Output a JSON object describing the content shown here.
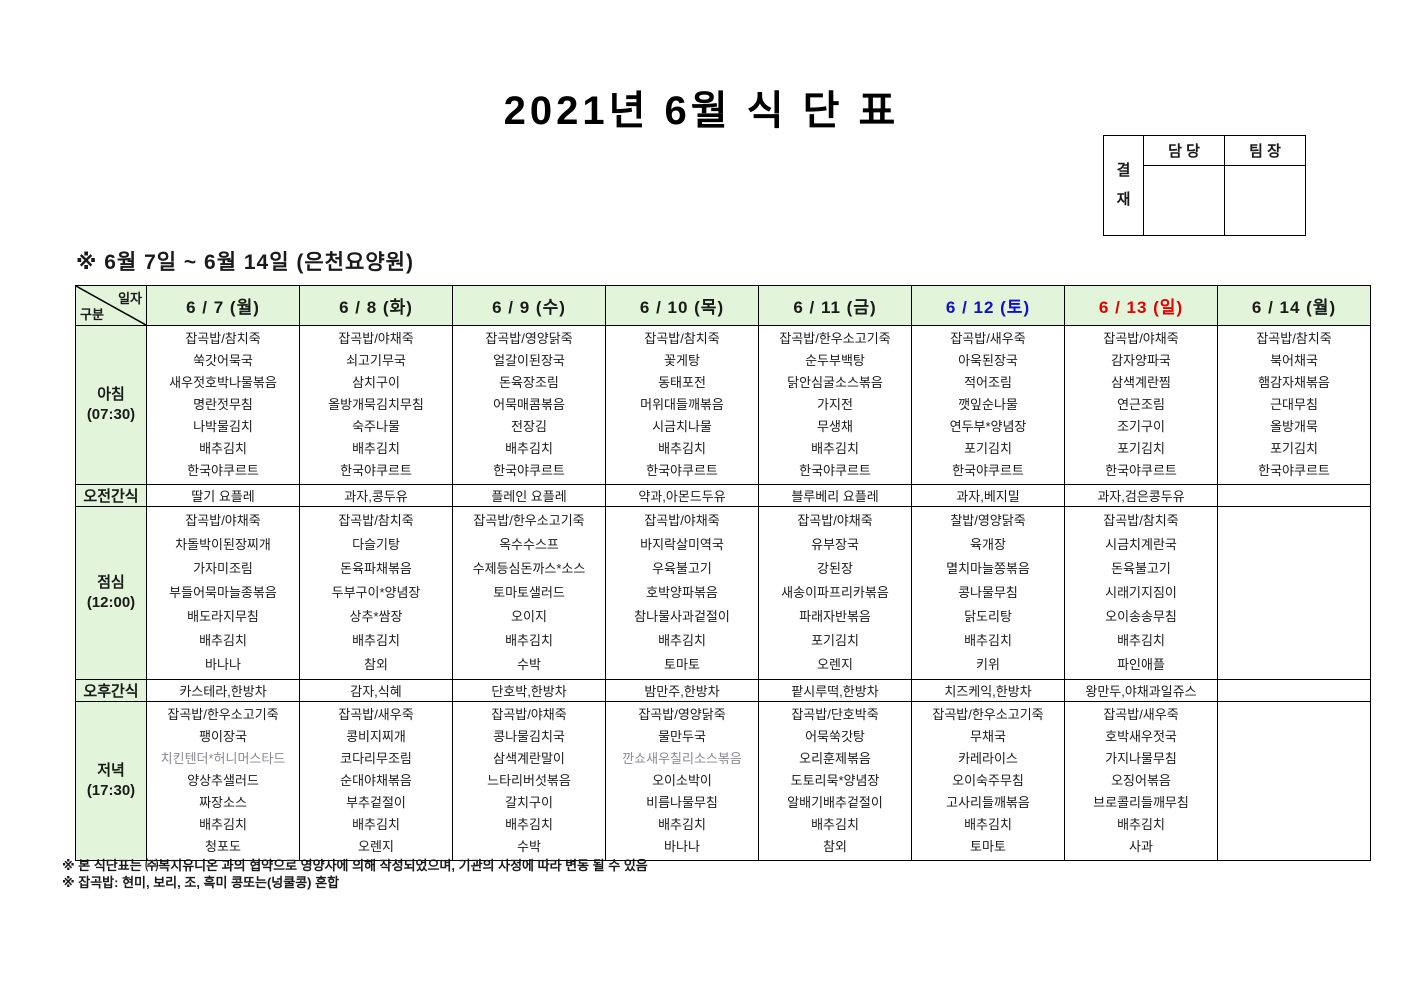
{
  "title": "2021년 6월 식 단 표",
  "approval": {
    "label": "결재",
    "columns": [
      "담 당",
      "팀 장"
    ]
  },
  "subtitle": "※ 6월 7일 ~ 6월 14일 (은천요양원)",
  "colors": {
    "header_green": "#e2f5da",
    "weekday_black": "#1a1a1a",
    "saturday_blue": "#0f0fd0",
    "sunday_red": "#e00000",
    "muted_gray": "#8a8a96"
  },
  "table": {
    "corner": {
      "top": "일자",
      "bottom": "구분"
    },
    "dates": [
      {
        "label": "6 / 7 (월)",
        "color": "#1a1a1a"
      },
      {
        "label": "6 / 8 (화)",
        "color": "#1a1a1a"
      },
      {
        "label": "6 / 9 (수)",
        "color": "#1a1a1a"
      },
      {
        "label": "6 / 10 (목)",
        "color": "#1a1a1a"
      },
      {
        "label": "6 / 11 (금)",
        "color": "#1a1a1a"
      },
      {
        "label": "6 / 12 (토)",
        "color": "#0f0fd0"
      },
      {
        "label": "6 / 13 (일)",
        "color": "#e00000"
      },
      {
        "label": "6 / 14 (월)",
        "color": "#1a1a1a"
      }
    ],
    "muted_items": [
      "치킨텐더*허니머스타드",
      "깐쇼새우칠리소스볶음"
    ],
    "rows": [
      {
        "type": "meal",
        "label": "아침",
        "time": "(07:30)",
        "cells": [
          [
            "잡곡밥/참치죽",
            "쑥갓어묵국",
            "새우젓호박나물볶음",
            "명란젓무침",
            "나박물김치",
            "배추김치",
            "한국야쿠르트"
          ],
          [
            "잡곡밥/야채죽",
            "쇠고기무국",
            "삼치구이",
            "올방개묵김치무침",
            "숙주나물",
            "배추김치",
            "한국야쿠르트"
          ],
          [
            "잡곡밥/영양닭죽",
            "얼갈이된장국",
            "돈육장조림",
            "어묵매콤볶음",
            "전장김",
            "배추김치",
            "한국야쿠르트"
          ],
          [
            "잡곡밥/참치죽",
            "꽃게탕",
            "동태포전",
            "머위대들깨볶음",
            "시금치나물",
            "배추김치",
            "한국야쿠르트"
          ],
          [
            "잡곡밥/한우소고기죽",
            "순두부백탕",
            "닭안심굴소스볶음",
            "가지전",
            "무생채",
            "배추김치",
            "한국야쿠르트"
          ],
          [
            "잡곡밥/새우죽",
            "아욱된장국",
            "적어조림",
            "깻잎순나물",
            "연두부*양념장",
            "포기김치",
            "한국야쿠르트"
          ],
          [
            "잡곡밥/야채죽",
            "감자양파국",
            "삼색계란찜",
            "연근조림",
            "조기구이",
            "포기김치",
            "한국야쿠르트"
          ],
          [
            "잡곡밥/참치죽",
            "북어채국",
            "햄감자채볶음",
            "근대무침",
            "올방개묵",
            "포기김치",
            "한국야쿠르트"
          ]
        ]
      },
      {
        "type": "snack",
        "label": "오전간식",
        "cells": [
          "딸기 요플레",
          "과자,콩두유",
          "플레인 요플레",
          "약과,아몬드두유",
          "블루베리 요플레",
          "과자,베지밀",
          "과자,검은콩두유",
          ""
        ]
      },
      {
        "type": "meal",
        "label": "점심",
        "time": "(12:00)",
        "cells": [
          [
            "잡곡밥/야채죽",
            "차돌박이된장찌개",
            "가자미조림",
            "부들어묵마늘종볶음",
            "배도라지무침",
            "배추김치",
            "바나나"
          ],
          [
            "잡곡밥/참치죽",
            "다슬기탕",
            "돈육파채볶음",
            "두부구이*양념장",
            "상추*쌈장",
            "배추김치",
            "참외"
          ],
          [
            "잡곡밥/한우소고기죽",
            "옥수수스프",
            "수제등심돈까스*소스",
            "토마토샐러드",
            "오이지",
            "배추김치",
            "수박"
          ],
          [
            "잡곡밥/야채죽",
            "바지락살미역국",
            "우육불고기",
            "호박양파볶음",
            "참나물사과겉절이",
            "배추김치",
            "토마토"
          ],
          [
            "잡곡밥/야채죽",
            "유부장국",
            "강된장",
            "새송이파프리카볶음",
            "파래자반볶음",
            "포기김치",
            "오렌지"
          ],
          [
            "찰밥/영양닭죽",
            "육개장",
            "멸치마늘쫑볶음",
            "콩나물무침",
            "닭도리탕",
            "배추김치",
            "키위"
          ],
          [
            "잡곡밥/참치죽",
            "시금치계란국",
            "돈육불고기",
            "시래기지짐이",
            "오이송송무침",
            "배추김치",
            "파인애플"
          ],
          []
        ]
      },
      {
        "type": "snack",
        "label": "오후간식",
        "cells": [
          "카스테라,한방차",
          "감자,식혜",
          "단호박,한방차",
          "밤만주,한방차",
          "팥시루떡,한방차",
          "치즈케익,한방차",
          "왕만두,야채과일쥬스",
          ""
        ]
      },
      {
        "type": "meal",
        "label": "저녁",
        "time": "(17:30)",
        "cells": [
          [
            "잡곡밥/한우소고기죽",
            "팽이장국",
            "치킨텐더*허니머스타드",
            "양상추샐러드",
            "짜장소스",
            "배추김치",
            "청포도"
          ],
          [
            "잡곡밥/새우죽",
            "콩비지찌개",
            "코다리무조림",
            "순대야채볶음",
            "부추겉절이",
            "배추김치",
            "오렌지"
          ],
          [
            "잡곡밥/야채죽",
            "콩나물김치국",
            "삼색계란말이",
            "느타리버섯볶음",
            "갈치구이",
            "배추김치",
            "수박"
          ],
          [
            "잡곡밥/영양닭죽",
            "물만두국",
            "깐쇼새우칠리소스볶음",
            "오이소박이",
            "비름나물무침",
            "배추김치",
            "바나나"
          ],
          [
            "잡곡밥/단호박죽",
            "어묵쑥갓탕",
            "오리훈제볶음",
            "도토리묵*양념장",
            "알배기배추겉절이",
            "배추김치",
            "참외"
          ],
          [
            "잡곡밥/한우소고기죽",
            "무채국",
            "카레라이스",
            "오이숙주무침",
            "고사리들깨볶음",
            "배추김치",
            "토마토"
          ],
          [
            "잡곡밥/새우죽",
            "호박새우젓국",
            "가지나물무침",
            "오징어볶음",
            "브로콜리들깨무침",
            "배추김치",
            "사과"
          ],
          []
        ]
      }
    ]
  },
  "footnotes": [
    "※ 본 식단표는 ㈜복지유니온 과의 협약으로 영양사에 의해 작성되었으며, 기관의 사정에 따라 변동 될 수 있음",
    "※ 잡곡밥: 현미, 보리, 조, 흑미 콩또는(넝쿨콩) 혼합"
  ]
}
